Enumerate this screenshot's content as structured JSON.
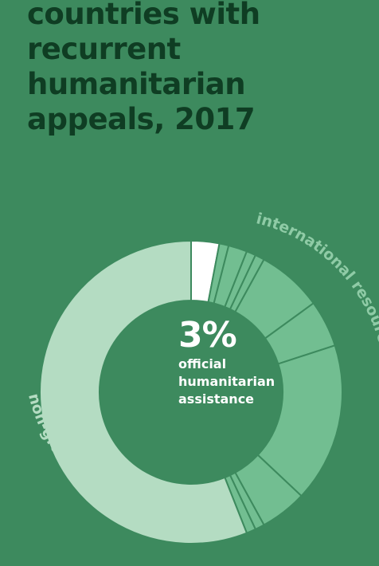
{
  "title_lines": [
    "countries with",
    "recurrent",
    "humanitarian",
    "appeals, 2017"
  ],
  "colors": {
    "background": "#3d8a5e",
    "title": "#0f3d23",
    "highlight": "#ffffff",
    "international": "#72be91",
    "international_light": "#8fcba6",
    "domestic": "#b4dcc2",
    "separator": "#3d8a5e"
  },
  "chart_data": {
    "type": "donut",
    "title": "countries with recurrent humanitarian appeals, 2017",
    "center_value": "3%",
    "center_label_lines": [
      "official",
      "humanitarian",
      "assistance"
    ],
    "group_labels": [
      "international resources",
      "non-grant government revenue"
    ],
    "segments": [
      {
        "group": "official humanitarian assistance",
        "value": 3
      },
      {
        "group": "international resources",
        "value": 1
      },
      {
        "group": "international resources",
        "value": 2
      },
      {
        "group": "international resources",
        "value": 1
      },
      {
        "group": "international resources",
        "value": 1
      },
      {
        "group": "international resources",
        "value": 7
      },
      {
        "group": "international resources",
        "value": 5
      },
      {
        "group": "international resources",
        "value": 17
      },
      {
        "group": "international resources",
        "value": 5
      },
      {
        "group": "international resources",
        "value": 1
      },
      {
        "group": "international resources",
        "value": 1
      },
      {
        "group": "non-grant government revenue",
        "value": 56
      }
    ]
  }
}
